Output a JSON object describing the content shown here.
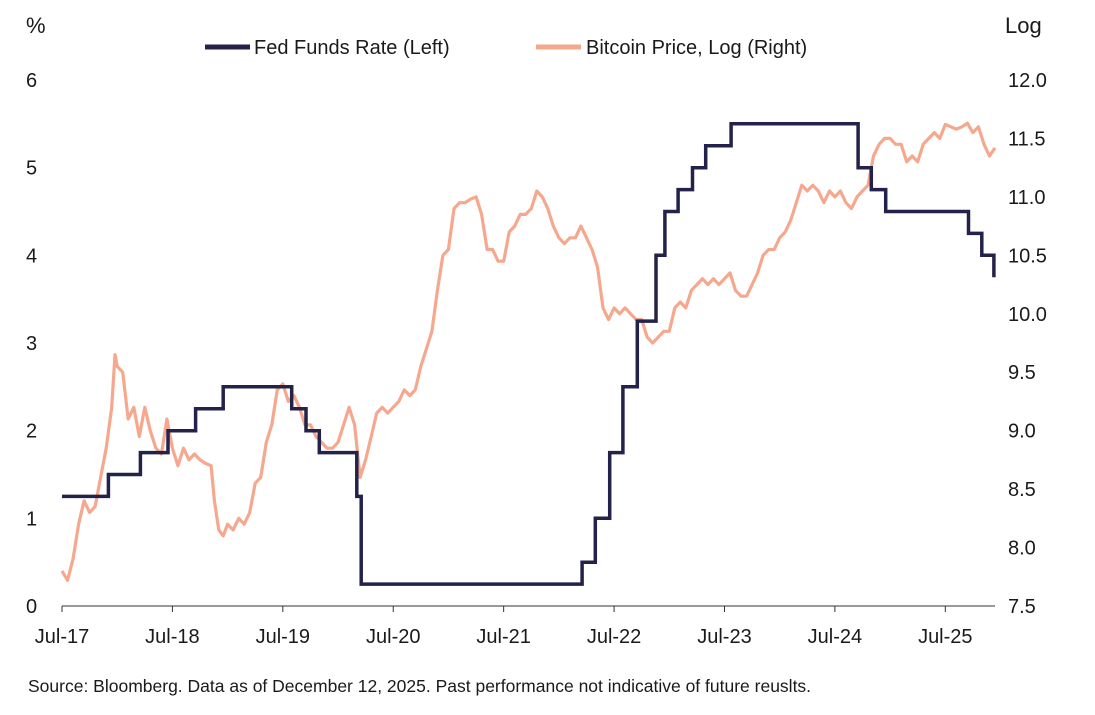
{
  "chart_data": {
    "type": "line",
    "title": "",
    "left_axis": {
      "unit_label": "%",
      "ticks": [
        0,
        1,
        2,
        3,
        4,
        5,
        6
      ],
      "ylim": [
        0,
        6
      ]
    },
    "right_axis": {
      "unit_label": "Log",
      "ticks": [
        7.5,
        8.0,
        8.5,
        9.0,
        9.5,
        10.0,
        10.5,
        11.0,
        11.5,
        12.0
      ],
      "tick_labels": [
        "7.5",
        "8.0",
        "8.5",
        "9.0",
        "9.5",
        "10.0",
        "10.5",
        "11.0",
        "11.5",
        "12.0"
      ],
      "ylim": [
        7.5,
        12.0
      ]
    },
    "x_axis": {
      "range": [
        2017.5,
        2025.95
      ],
      "ticks": [
        2017.5,
        2018.5,
        2019.5,
        2020.5,
        2021.5,
        2022.5,
        2023.5,
        2024.5,
        2025.5
      ],
      "tick_labels": [
        "Jul-17",
        "Jul-18",
        "Jul-19",
        "Jul-20",
        "Jul-21",
        "Jul-22",
        "Jul-23",
        "Jul-24",
        "Jul-25"
      ]
    },
    "legend": {
      "placement": "top-center",
      "entries": [
        "Fed Funds Rate (Left)",
        "Bitcoin Price, Log (Right)"
      ]
    },
    "series": [
      {
        "name": "Fed Funds Rate (Left)",
        "axis": "left",
        "color": "#23224a",
        "style": "step",
        "points": [
          [
            2017.5,
            1.25
          ],
          [
            2017.92,
            1.25
          ],
          [
            2017.92,
            1.5
          ],
          [
            2018.21,
            1.5
          ],
          [
            2018.21,
            1.75
          ],
          [
            2018.46,
            1.75
          ],
          [
            2018.46,
            2.0
          ],
          [
            2018.71,
            2.0
          ],
          [
            2018.71,
            2.25
          ],
          [
            2018.96,
            2.25
          ],
          [
            2018.96,
            2.5
          ],
          [
            2019.58,
            2.5
          ],
          [
            2019.58,
            2.25
          ],
          [
            2019.71,
            2.25
          ],
          [
            2019.71,
            2.0
          ],
          [
            2019.83,
            2.0
          ],
          [
            2019.83,
            1.75
          ],
          [
            2020.17,
            1.75
          ],
          [
            2020.17,
            1.25
          ],
          [
            2020.21,
            1.25
          ],
          [
            2020.21,
            0.25
          ],
          [
            2022.21,
            0.25
          ],
          [
            2022.21,
            0.5
          ],
          [
            2022.33,
            0.5
          ],
          [
            2022.33,
            1.0
          ],
          [
            2022.46,
            1.0
          ],
          [
            2022.46,
            1.75
          ],
          [
            2022.58,
            1.75
          ],
          [
            2022.58,
            2.5
          ],
          [
            2022.71,
            2.5
          ],
          [
            2022.71,
            3.25
          ],
          [
            2022.88,
            3.25
          ],
          [
            2022.88,
            4.0
          ],
          [
            2022.96,
            4.0
          ],
          [
            2022.96,
            4.5
          ],
          [
            2023.08,
            4.5
          ],
          [
            2023.08,
            4.75
          ],
          [
            2023.21,
            4.75
          ],
          [
            2023.21,
            5.0
          ],
          [
            2023.33,
            5.0
          ],
          [
            2023.33,
            5.25
          ],
          [
            2023.56,
            5.25
          ],
          [
            2023.56,
            5.5
          ],
          [
            2024.71,
            5.5
          ],
          [
            2024.71,
            5.0
          ],
          [
            2024.83,
            5.0
          ],
          [
            2024.83,
            4.75
          ],
          [
            2024.96,
            4.75
          ],
          [
            2024.96,
            4.5
          ],
          [
            2025.71,
            4.5
          ],
          [
            2025.71,
            4.25
          ],
          [
            2025.83,
            4.25
          ],
          [
            2025.83,
            4.0
          ],
          [
            2025.94,
            4.0
          ],
          [
            2025.94,
            3.75
          ]
        ]
      },
      {
        "name": "Bitcoin Price, Log (Right)",
        "axis": "right",
        "color": "#f5a88e",
        "style": "line",
        "points": [
          [
            2017.5,
            7.8
          ],
          [
            2017.55,
            7.72
          ],
          [
            2017.6,
            7.9
          ],
          [
            2017.65,
            8.2
          ],
          [
            2017.7,
            8.4
          ],
          [
            2017.75,
            8.3
          ],
          [
            2017.8,
            8.35
          ],
          [
            2017.85,
            8.6
          ],
          [
            2017.9,
            8.85
          ],
          [
            2017.95,
            9.2
          ],
          [
            2017.98,
            9.65
          ],
          [
            2018.0,
            9.55
          ],
          [
            2018.05,
            9.5
          ],
          [
            2018.1,
            9.1
          ],
          [
            2018.15,
            9.2
          ],
          [
            2018.2,
            8.95
          ],
          [
            2018.25,
            9.2
          ],
          [
            2018.3,
            9.0
          ],
          [
            2018.35,
            8.85
          ],
          [
            2018.4,
            8.8
          ],
          [
            2018.45,
            9.1
          ],
          [
            2018.5,
            8.85
          ],
          [
            2018.55,
            8.7
          ],
          [
            2018.6,
            8.85
          ],
          [
            2018.65,
            8.75
          ],
          [
            2018.7,
            8.8
          ],
          [
            2018.75,
            8.75
          ],
          [
            2018.8,
            8.72
          ],
          [
            2018.85,
            8.7
          ],
          [
            2018.88,
            8.4
          ],
          [
            2018.92,
            8.15
          ],
          [
            2018.96,
            8.1
          ],
          [
            2019.0,
            8.2
          ],
          [
            2019.05,
            8.15
          ],
          [
            2019.1,
            8.25
          ],
          [
            2019.15,
            8.2
          ],
          [
            2019.2,
            8.3
          ],
          [
            2019.25,
            8.55
          ],
          [
            2019.3,
            8.6
          ],
          [
            2019.35,
            8.9
          ],
          [
            2019.4,
            9.05
          ],
          [
            2019.45,
            9.35
          ],
          [
            2019.5,
            9.4
          ],
          [
            2019.55,
            9.25
          ],
          [
            2019.6,
            9.3
          ],
          [
            2019.65,
            9.2
          ],
          [
            2019.7,
            9.05
          ],
          [
            2019.75,
            9.05
          ],
          [
            2019.8,
            8.95
          ],
          [
            2019.85,
            8.9
          ],
          [
            2019.9,
            8.85
          ],
          [
            2019.95,
            8.85
          ],
          [
            2020.0,
            8.9
          ],
          [
            2020.05,
            9.05
          ],
          [
            2020.1,
            9.2
          ],
          [
            2020.15,
            9.05
          ],
          [
            2020.2,
            8.6
          ],
          [
            2020.25,
            8.75
          ],
          [
            2020.3,
            8.95
          ],
          [
            2020.35,
            9.15
          ],
          [
            2020.4,
            9.2
          ],
          [
            2020.45,
            9.15
          ],
          [
            2020.5,
            9.2
          ],
          [
            2020.55,
            9.25
          ],
          [
            2020.6,
            9.35
          ],
          [
            2020.65,
            9.3
          ],
          [
            2020.7,
            9.35
          ],
          [
            2020.75,
            9.55
          ],
          [
            2020.8,
            9.7
          ],
          [
            2020.85,
            9.85
          ],
          [
            2020.9,
            10.2
          ],
          [
            2020.95,
            10.5
          ],
          [
            2021.0,
            10.55
          ],
          [
            2021.05,
            10.9
          ],
          [
            2021.1,
            10.95
          ],
          [
            2021.15,
            10.95
          ],
          [
            2021.2,
            10.98
          ],
          [
            2021.25,
            11.0
          ],
          [
            2021.3,
            10.85
          ],
          [
            2021.35,
            10.55
          ],
          [
            2021.4,
            10.55
          ],
          [
            2021.45,
            10.45
          ],
          [
            2021.5,
            10.45
          ],
          [
            2021.55,
            10.7
          ],
          [
            2021.6,
            10.75
          ],
          [
            2021.65,
            10.85
          ],
          [
            2021.7,
            10.85
          ],
          [
            2021.75,
            10.9
          ],
          [
            2021.8,
            11.05
          ],
          [
            2021.85,
            11.0
          ],
          [
            2021.9,
            10.9
          ],
          [
            2021.95,
            10.75
          ],
          [
            2022.0,
            10.65
          ],
          [
            2022.05,
            10.6
          ],
          [
            2022.1,
            10.65
          ],
          [
            2022.15,
            10.65
          ],
          [
            2022.2,
            10.75
          ],
          [
            2022.25,
            10.65
          ],
          [
            2022.3,
            10.55
          ],
          [
            2022.35,
            10.4
          ],
          [
            2022.4,
            10.05
          ],
          [
            2022.45,
            9.95
          ],
          [
            2022.5,
            10.05
          ],
          [
            2022.55,
            10.0
          ],
          [
            2022.6,
            10.05
          ],
          [
            2022.65,
            10.0
          ],
          [
            2022.7,
            9.95
          ],
          [
            2022.75,
            9.95
          ],
          [
            2022.8,
            9.8
          ],
          [
            2022.85,
            9.75
          ],
          [
            2022.9,
            9.8
          ],
          [
            2022.95,
            9.85
          ],
          [
            2023.0,
            9.85
          ],
          [
            2023.05,
            10.05
          ],
          [
            2023.1,
            10.1
          ],
          [
            2023.15,
            10.05
          ],
          [
            2023.2,
            10.2
          ],
          [
            2023.25,
            10.25
          ],
          [
            2023.3,
            10.3
          ],
          [
            2023.35,
            10.25
          ],
          [
            2023.4,
            10.3
          ],
          [
            2023.45,
            10.25
          ],
          [
            2023.5,
            10.3
          ],
          [
            2023.55,
            10.35
          ],
          [
            2023.6,
            10.2
          ],
          [
            2023.65,
            10.15
          ],
          [
            2023.7,
            10.15
          ],
          [
            2023.75,
            10.25
          ],
          [
            2023.8,
            10.35
          ],
          [
            2023.85,
            10.5
          ],
          [
            2023.9,
            10.55
          ],
          [
            2023.95,
            10.55
          ],
          [
            2024.0,
            10.65
          ],
          [
            2024.05,
            10.7
          ],
          [
            2024.1,
            10.8
          ],
          [
            2024.15,
            10.95
          ],
          [
            2024.2,
            11.1
          ],
          [
            2024.25,
            11.05
          ],
          [
            2024.3,
            11.1
          ],
          [
            2024.35,
            11.05
          ],
          [
            2024.4,
            10.95
          ],
          [
            2024.45,
            11.05
          ],
          [
            2024.5,
            11.0
          ],
          [
            2024.55,
            11.05
          ],
          [
            2024.6,
            10.95
          ],
          [
            2024.65,
            10.9
          ],
          [
            2024.7,
            11.0
          ],
          [
            2024.75,
            11.05
          ],
          [
            2024.8,
            11.1
          ],
          [
            2024.85,
            11.35
          ],
          [
            2024.9,
            11.45
          ],
          [
            2024.95,
            11.5
          ],
          [
            2025.0,
            11.5
          ],
          [
            2025.05,
            11.45
          ],
          [
            2025.1,
            11.45
          ],
          [
            2025.15,
            11.3
          ],
          [
            2025.2,
            11.35
          ],
          [
            2025.25,
            11.3
          ],
          [
            2025.3,
            11.45
          ],
          [
            2025.35,
            11.5
          ],
          [
            2025.4,
            11.55
          ],
          [
            2025.45,
            11.5
          ],
          [
            2025.5,
            11.62
          ],
          [
            2025.55,
            11.6
          ],
          [
            2025.6,
            11.58
          ],
          [
            2025.65,
            11.6
          ],
          [
            2025.7,
            11.63
          ],
          [
            2025.75,
            11.55
          ],
          [
            2025.8,
            11.6
          ],
          [
            2025.85,
            11.45
          ],
          [
            2025.9,
            11.35
          ],
          [
            2025.95,
            11.42
          ]
        ]
      }
    ]
  },
  "source_note": "Source: Bloomberg. Data as of December 12, 2025. Past performance not indicative of future reuslts."
}
